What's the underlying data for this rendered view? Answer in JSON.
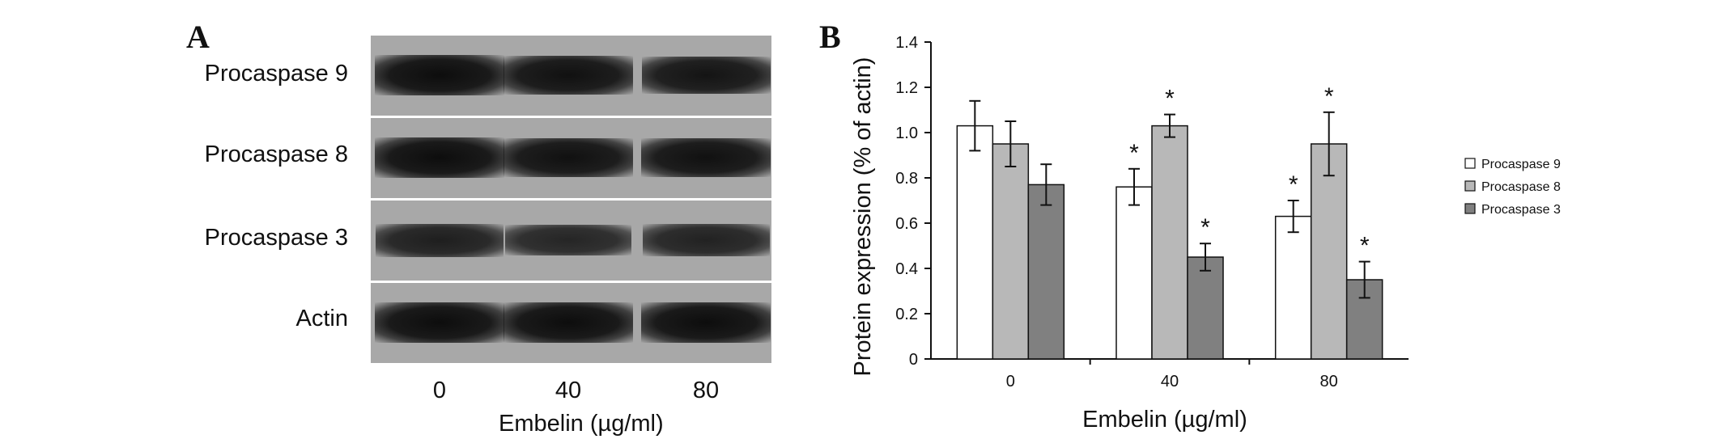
{
  "panel_a": {
    "letter": "A",
    "rows": [
      "Procaspase 9",
      "Procaspase 8",
      "Procaspase 3",
      "Actin"
    ],
    "lanes": [
      "0",
      "40",
      "80"
    ],
    "xlabel": "Embelin (µg/ml)",
    "band_intensity": [
      [
        1.0,
        0.95,
        0.9
      ],
      [
        1.0,
        0.95,
        0.95
      ],
      [
        0.75,
        0.65,
        0.7
      ],
      [
        1.0,
        1.0,
        1.0
      ]
    ]
  },
  "panel_b": {
    "letter": "B"
  },
  "chart_data": {
    "type": "bar",
    "categories": [
      "0",
      "40",
      "80"
    ],
    "series": [
      {
        "name": "Procaspase 9",
        "color": "#ffffff",
        "values": [
          1.03,
          0.76,
          0.63
        ],
        "errors": [
          0.11,
          0.08,
          0.07
        ],
        "significant": [
          false,
          true,
          true
        ]
      },
      {
        "name": "Procaspase 8",
        "color": "#b8b8b8",
        "values": [
          0.95,
          1.03,
          0.95
        ],
        "errors": [
          0.1,
          0.05,
          0.14
        ],
        "significant": [
          false,
          true,
          true
        ]
      },
      {
        "name": "Procaspase 3",
        "color": "#808080",
        "values": [
          0.77,
          0.45,
          0.35
        ],
        "errors": [
          0.09,
          0.06,
          0.08
        ],
        "significant": [
          false,
          true,
          true
        ]
      }
    ],
    "significance_marker": "*",
    "xlabel": "Embelin (µg/ml)",
    "ylabel": "Protein expression (% of actin)",
    "ylim": [
      0,
      1.4
    ],
    "yticks": [
      "0",
      "0.2",
      "0.4",
      "0.6",
      "0.8",
      "1.0",
      "1.2",
      "1.4"
    ],
    "grid": false,
    "legend": "right"
  }
}
